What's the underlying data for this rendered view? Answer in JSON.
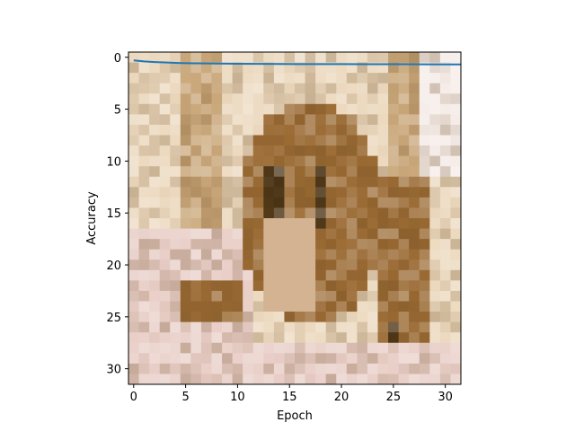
{
  "chart_data": {
    "type": "line",
    "title": "",
    "xlabel": "Epoch",
    "ylabel": "Accuracy",
    "xlim": [
      -0.5,
      31.5
    ],
    "ylim": [
      31.5,
      -0.5
    ],
    "y_inverted": true,
    "grid": false,
    "legend": "none",
    "background": "pixelated photograph (32x32) of an animal, shown as image under the line",
    "x_ticks": [
      0,
      5,
      10,
      15,
      20,
      25,
      30
    ],
    "y_ticks": [
      0,
      5,
      10,
      15,
      20,
      25,
      30
    ],
    "series": [
      {
        "color": "#1f77b4",
        "x": [
          0,
          1,
          2,
          3,
          4,
          5,
          6,
          8,
          10,
          12,
          14,
          16,
          18,
          20,
          22,
          24,
          26,
          28,
          30,
          31.5
        ],
        "y": [
          0.3,
          0.4,
          0.46,
          0.5,
          0.54,
          0.57,
          0.58,
          0.6,
          0.62,
          0.64,
          0.65,
          0.66,
          0.66,
          0.66,
          0.67,
          0.67,
          0.67,
          0.68,
          0.69,
          0.69
        ]
      }
    ]
  },
  "image_palette": {
    "cream": "#ecd9bf",
    "tan": "#c9a77a",
    "brown": "#9a6a33",
    "dark": "#4a3314",
    "pink": "#e9cfc8",
    "white": "#f5ece8"
  }
}
